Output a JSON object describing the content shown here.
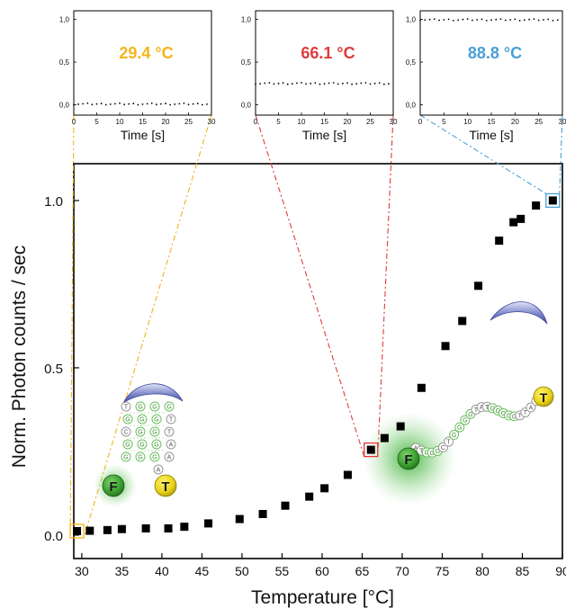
{
  "chart_data": {
    "main": {
      "type": "scatter",
      "xlabel": "Temperature [°C]",
      "ylabel": "Norm. Photon counts / sec",
      "xlim": [
        29,
        90
      ],
      "ylim": [
        -0.07,
        1.11
      ],
      "xticks": [
        30,
        35,
        40,
        45,
        50,
        55,
        60,
        65,
        70,
        75,
        80,
        85,
        90
      ],
      "yticks": [
        "0.0",
        "0.5",
        "1.0"
      ],
      "yticks_values": [
        0.0,
        0.5,
        1.0
      ],
      "marker_color": "#000000",
      "grid": false,
      "points": [
        [
          29.4,
          0.012
        ],
        [
          31.0,
          0.013
        ],
        [
          33.2,
          0.015
        ],
        [
          35.0,
          0.018
        ],
        [
          38.0,
          0.02
        ],
        [
          40.8,
          0.02
        ],
        [
          42.8,
          0.025
        ],
        [
          45.8,
          0.035
        ],
        [
          49.7,
          0.048
        ],
        [
          52.6,
          0.063
        ],
        [
          55.4,
          0.088
        ],
        [
          58.4,
          0.115
        ],
        [
          60.3,
          0.14
        ],
        [
          63.2,
          0.18
        ],
        [
          66.1,
          0.255
        ],
        [
          67.8,
          0.29
        ],
        [
          69.8,
          0.325
        ],
        [
          72.4,
          0.44
        ],
        [
          75.4,
          0.565
        ],
        [
          77.5,
          0.64
        ],
        [
          79.5,
          0.745
        ],
        [
          82.1,
          0.88
        ],
        [
          83.9,
          0.935
        ],
        [
          84.8,
          0.945
        ],
        [
          86.7,
          0.985
        ],
        [
          88.8,
          1.0
        ]
      ],
      "highlights": [
        {
          "x": 29.4,
          "y": 0.012,
          "color": "#f4b41a"
        },
        {
          "x": 66.1,
          "y": 0.255,
          "color": "#e03a3a"
        },
        {
          "x": 88.8,
          "y": 1.0,
          "color": "#4a9fd4"
        }
      ]
    },
    "insets": [
      {
        "type": "scatter",
        "label": "29.4 °C",
        "label_color": "#f4b41a",
        "xlabel": "Time [s]",
        "xlim": [
          0,
          30
        ],
        "ylim": [
          -0.12,
          1.1
        ],
        "xticks": [
          0,
          5,
          10,
          15,
          20,
          25,
          30
        ],
        "yticks": [
          "0,0",
          "0,5",
          "1,0"
        ],
        "yticks_values": [
          0.0,
          0.5,
          1.0
        ],
        "level": 0.01
      },
      {
        "type": "scatter",
        "label": "66.1 °C",
        "label_color": "#e03a3a",
        "xlabel": "Time [s]",
        "xlim": [
          0,
          30
        ],
        "ylim": [
          -0.12,
          1.1
        ],
        "xticks": [
          0,
          5,
          10,
          15,
          20,
          25,
          30
        ],
        "yticks": [
          "0,0",
          "0,5",
          "1,0"
        ],
        "yticks_values": [
          0.0,
          0.5,
          1.0
        ],
        "level": 0.25
      },
      {
        "type": "scatter",
        "label": "88.8 °C",
        "label_color": "#4a9fd4",
        "xlabel": "Time [s]",
        "xlim": [
          0,
          30
        ],
        "ylim": [
          -0.12,
          1.1
        ],
        "xticks": [
          0,
          5,
          10,
          15,
          20,
          25,
          30
        ],
        "yticks": [
          "0,0",
          "0,5",
          "1,0"
        ],
        "yticks_values": [
          0.0,
          0.5,
          1.0
        ],
        "level": 0.995
      }
    ],
    "illustrations": {
      "folded_labels": [
        "F",
        "T"
      ],
      "unfolded_labels": [
        "F",
        "T"
      ],
      "folded_bases": [
        "T",
        "G",
        "C",
        "G",
        "G",
        "G",
        "G",
        "G",
        "G",
        "G",
        "G",
        "G",
        "G",
        "G",
        "G",
        "G",
        "T",
        "T",
        "A",
        "A",
        "A"
      ],
      "unfolded_bases": [
        "A",
        "T",
        "G",
        "G",
        "G",
        "C",
        "T",
        "G",
        "G",
        "G",
        "G",
        "T",
        "A",
        "T",
        "G",
        "G",
        "G",
        "G",
        "G",
        "T",
        "T",
        "A",
        "T"
      ]
    }
  }
}
